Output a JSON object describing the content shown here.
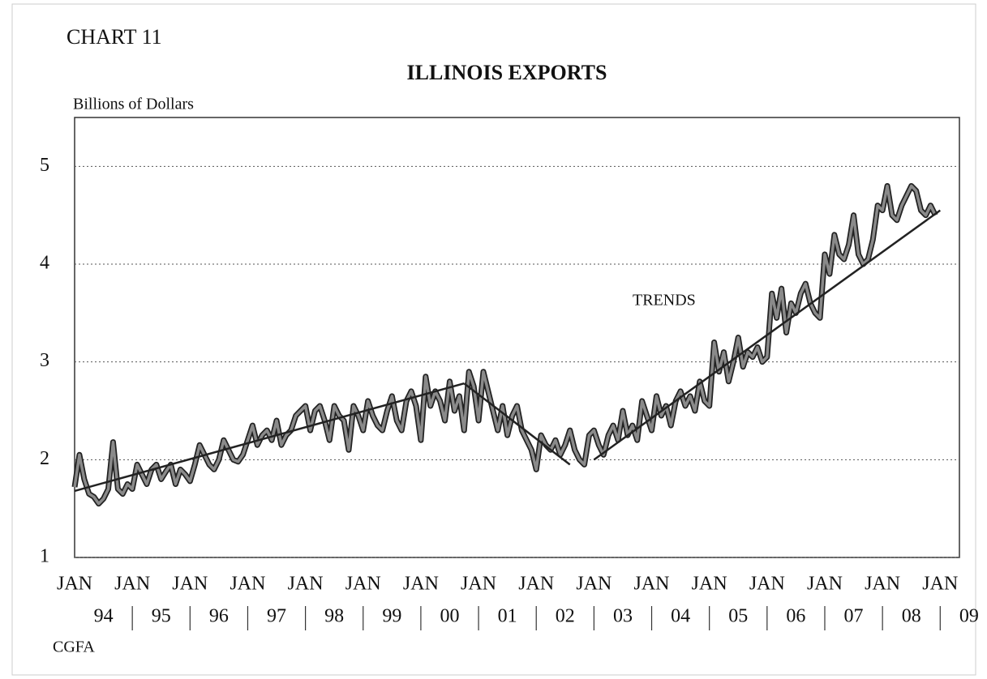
{
  "chart_data": {
    "type": "line",
    "chart_label": "CHART 11",
    "title": "ILLINOIS EXPORTS",
    "ylabel": "Billions of Dollars",
    "source": "CGFA",
    "annotation": "TRENDS",
    "ylim": [
      1,
      5.5
    ],
    "yticks": [
      1,
      2,
      3,
      4,
      5
    ],
    "xlim": [
      0,
      184
    ],
    "xticks": [
      {
        "value": 0,
        "label": "JAN"
      },
      {
        "value": 12,
        "label": "JAN"
      },
      {
        "value": 24,
        "label": "JAN"
      },
      {
        "value": 36,
        "label": "JAN"
      },
      {
        "value": 48,
        "label": "JAN"
      },
      {
        "value": 60,
        "label": "JAN"
      },
      {
        "value": 72,
        "label": "JAN"
      },
      {
        "value": 84,
        "label": "JAN"
      },
      {
        "value": 96,
        "label": "JAN"
      },
      {
        "value": 108,
        "label": "JAN"
      },
      {
        "value": 120,
        "label": "JAN"
      },
      {
        "value": 132,
        "label": "JAN"
      },
      {
        "value": 144,
        "label": "JAN"
      },
      {
        "value": 156,
        "label": "JAN"
      },
      {
        "value": 168,
        "label": "JAN"
      },
      {
        "value": 180,
        "label": "JAN"
      }
    ],
    "year_labels": [
      "94",
      "95",
      "96",
      "97",
      "98",
      "99",
      "00",
      "01",
      "02",
      "03",
      "04",
      "05",
      "06",
      "07",
      "08",
      "09"
    ],
    "grid": true,
    "series": [
      {
        "name": "Illinois Exports",
        "color": "#8a8a8a",
        "values": [
          1.72,
          2.05,
          1.8,
          1.65,
          1.62,
          1.55,
          1.6,
          1.7,
          2.18,
          1.7,
          1.65,
          1.75,
          1.7,
          1.95,
          1.85,
          1.75,
          1.9,
          1.95,
          1.8,
          1.88,
          1.95,
          1.75,
          1.9,
          1.85,
          1.78,
          1.95,
          2.15,
          2.05,
          1.95,
          1.9,
          2.0,
          2.2,
          2.1,
          2.0,
          1.98,
          2.05,
          2.2,
          2.35,
          2.15,
          2.25,
          2.3,
          2.2,
          2.4,
          2.15,
          2.25,
          2.3,
          2.45,
          2.5,
          2.55,
          2.3,
          2.5,
          2.55,
          2.4,
          2.2,
          2.55,
          2.45,
          2.4,
          2.1,
          2.55,
          2.45,
          2.3,
          2.6,
          2.45,
          2.35,
          2.3,
          2.5,
          2.65,
          2.4,
          2.3,
          2.6,
          2.7,
          2.55,
          2.2,
          2.85,
          2.55,
          2.7,
          2.6,
          2.4,
          2.8,
          2.5,
          2.65,
          2.3,
          2.9,
          2.75,
          2.4,
          2.9,
          2.7,
          2.5,
          2.3,
          2.55,
          2.25,
          2.45,
          2.55,
          2.3,
          2.2,
          2.1,
          1.9,
          2.25,
          2.15,
          2.1,
          2.2,
          2.05,
          2.15,
          2.3,
          2.1,
          2.0,
          1.95,
          2.25,
          2.3,
          2.15,
          2.05,
          2.25,
          2.35,
          2.2,
          2.5,
          2.25,
          2.35,
          2.2,
          2.6,
          2.45,
          2.3,
          2.65,
          2.45,
          2.55,
          2.35,
          2.6,
          2.7,
          2.55,
          2.65,
          2.5,
          2.8,
          2.6,
          2.55,
          3.2,
          2.9,
          3.1,
          2.8,
          3.0,
          3.25,
          2.95,
          3.1,
          3.05,
          3.15,
          3.0,
          3.05,
          3.7,
          3.45,
          3.75,
          3.3,
          3.6,
          3.5,
          3.7,
          3.8,
          3.6,
          3.5,
          3.45,
          4.1,
          3.9,
          4.3,
          4.1,
          4.05,
          4.2,
          4.5,
          4.1,
          4.0,
          4.05,
          4.25,
          4.6,
          4.55,
          4.8,
          4.5,
          4.45,
          4.6,
          4.7,
          4.8,
          4.75,
          4.55,
          4.5,
          4.6,
          4.5
        ]
      }
    ],
    "trends": [
      {
        "x": [
          0,
          81
        ],
        "values": [
          1.68,
          2.78
        ],
        "color": "#222222"
      },
      {
        "x": [
          81,
          103
        ],
        "values": [
          2.78,
          1.95
        ],
        "color": "#222222"
      },
      {
        "x": [
          108,
          180
        ],
        "values": [
          2.0,
          4.55
        ],
        "color": "#222222"
      }
    ]
  }
}
